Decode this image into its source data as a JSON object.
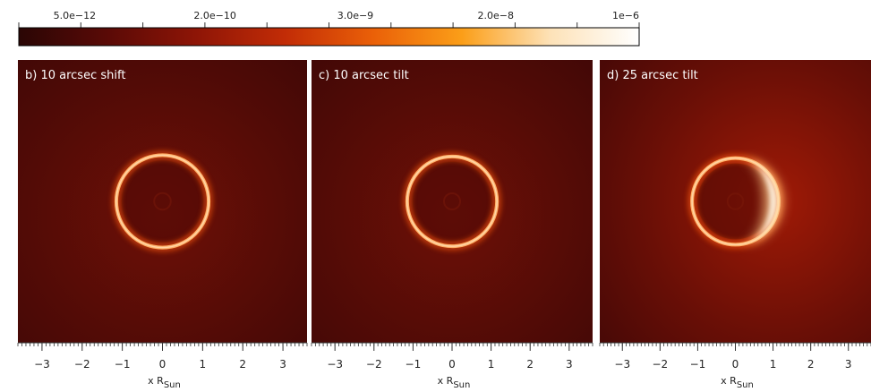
{
  "colorbar": {
    "tick_labels": [
      "5.0e−12",
      "2.0e−10",
      "3.0e−9",
      "2.0e−8",
      "1e−6"
    ],
    "tick_values": [
      5e-12,
      2e-10,
      3e-09,
      2e-08,
      1e-06
    ],
    "colors": [
      "#2a0605",
      "#5a0a06",
      "#8e1506",
      "#c22c06",
      "#ea6008",
      "#fb9e18",
      "#fde2b8",
      "#ffffff"
    ]
  },
  "panels": [
    {
      "title": "b) 10 arcsec shift",
      "asymmetry": "none"
    },
    {
      "title": "c) 10 arcsec tilt",
      "asymmetry": "none"
    },
    {
      "title": "d) 25 arcsec tilt",
      "asymmetry": "right"
    }
  ],
  "x_axis": {
    "tick_labels": [
      "−3",
      "−2",
      "−1",
      "0",
      "1",
      "2",
      "3"
    ],
    "label_prefix": "x R",
    "label_sub": "Sun",
    "range": [
      -3.6,
      3.6
    ]
  },
  "ring_radius": 1.15
}
